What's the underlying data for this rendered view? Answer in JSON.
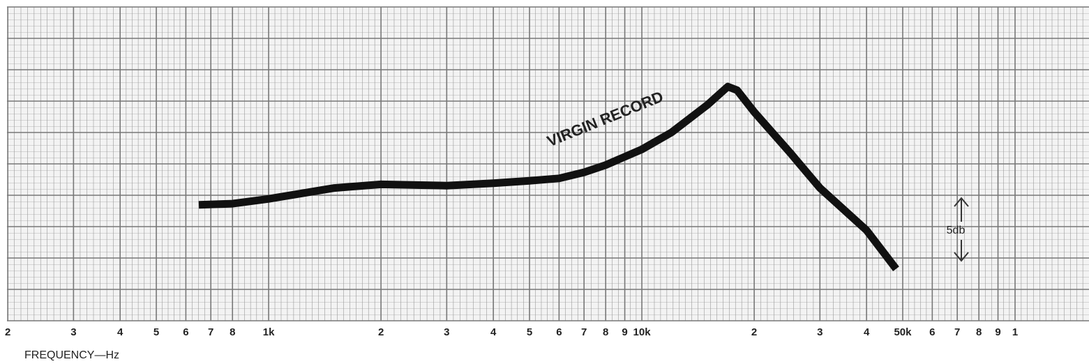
{
  "chart_data": {
    "type": "line",
    "xlabel": "FREQUENCY—Hz",
    "annotations": [
      "VIRGIN RECORD",
      "5db"
    ],
    "xscale": "log",
    "xlim": [
      199,
      157800
    ],
    "ylim": [
      0,
      26
    ],
    "grid": true,
    "xticks": [
      {
        "value": 200,
        "label": "2"
      },
      {
        "value": 300,
        "label": "3"
      },
      {
        "value": 400,
        "label": "4"
      },
      {
        "value": 500,
        "label": "5"
      },
      {
        "value": 600,
        "label": "6"
      },
      {
        "value": 700,
        "label": "7"
      },
      {
        "value": 800,
        "label": "8"
      },
      {
        "value": 1000,
        "label": "1k"
      },
      {
        "value": 2000,
        "label": "2"
      },
      {
        "value": 3000,
        "label": "3"
      },
      {
        "value": 4000,
        "label": "4"
      },
      {
        "value": 5000,
        "label": "5"
      },
      {
        "value": 6000,
        "label": "6"
      },
      {
        "value": 7000,
        "label": "7"
      },
      {
        "value": 8000,
        "label": "8"
      },
      {
        "value": 9000,
        "label": "9"
      },
      {
        "value": 10000,
        "label": "10k"
      },
      {
        "value": 20000,
        "label": "2"
      },
      {
        "value": 30000,
        "label": "3"
      },
      {
        "value": 40000,
        "label": "4"
      },
      {
        "value": 50000,
        "label": "50k"
      },
      {
        "value": 60000,
        "label": "6"
      },
      {
        "value": 70000,
        "label": "7"
      },
      {
        "value": 80000,
        "label": "8"
      },
      {
        "value": 90000,
        "label": "9"
      },
      {
        "value": 100000,
        "label": "1"
      }
    ],
    "x": [
      650,
      800,
      1000,
      1500,
      2000,
      3000,
      4000,
      5000,
      6000,
      7000,
      8000,
      10000,
      12000,
      15000,
      17000,
      18000,
      20000,
      25000,
      30000,
      40000,
      48000
    ],
    "series": [
      {
        "color": "#111111",
        "values": [
          9.6,
          9.7,
          10.1,
          11.0,
          11.3,
          11.2,
          11.4,
          11.6,
          11.8,
          12.3,
          12.9,
          14.2,
          15.6,
          17.9,
          19.4,
          19.1,
          17.3,
          13.9,
          11.0,
          7.5,
          4.3
        ]
      }
    ]
  }
}
